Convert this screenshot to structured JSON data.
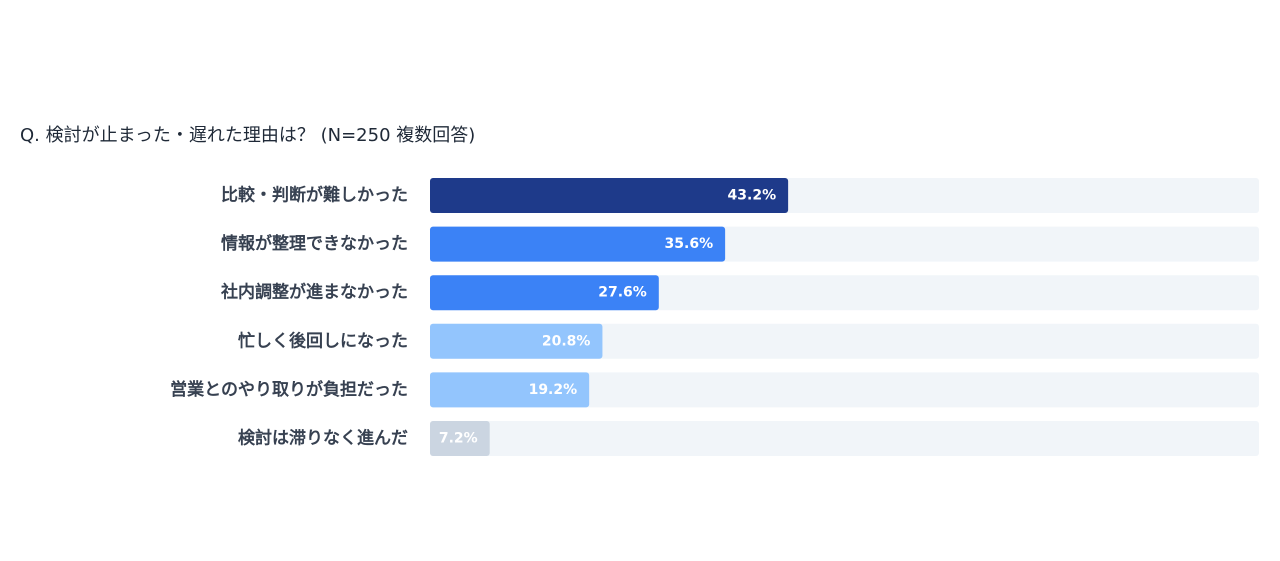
{
  "chart_data": {
    "type": "bar",
    "orientation": "horizontal",
    "title": "Q. 検討が止まった・遅れた理由は？ (N=250 複数回答)",
    "categories": [
      "比較・判断が難しかった",
      "情報が整理できなかった",
      "社内調整が進まなかった",
      "忙しく後回しになった",
      "営業とのやり取りが負担だった",
      "検討は滞りなく進んだ"
    ],
    "values": [
      43.2,
      35.6,
      27.6,
      20.8,
      19.2,
      7.2
    ],
    "value_labels": [
      "43.2%",
      "35.6%",
      "27.6%",
      "20.8%",
      "19.2%",
      "7.2%"
    ],
    "xlim": [
      0,
      100
    ],
    "unit": "%",
    "grid": false,
    "legend": "none",
    "colors": {
      "bars": [
        "#1e3a8a",
        "#3b82f6",
        "#3b82f6",
        "#93c5fd",
        "#93c5fd",
        "#cbd5e1"
      ],
      "track": "#f1f5f9",
      "label_text": [
        "#ffffff",
        "#ffffff",
        "#ffffff",
        "#ffffff",
        "#ffffff",
        "#ffffff"
      ]
    }
  }
}
